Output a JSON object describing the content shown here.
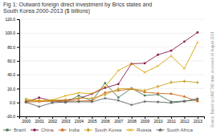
{
  "chart_data": {
    "type": "line",
    "title": "Fig 1: Outward foreign direct investment by Brics states and\nSouth Korea 2000-2013 ($ billions)",
    "x": [
      2000,
      2001,
      2002,
      2003,
      2004,
      2005,
      2006,
      2007,
      2008,
      2009,
      2010,
      2011,
      2012,
      2013
    ],
    "series": [
      {
        "name": "Brazil",
        "color": "#4a7c59",
        "marker": "square",
        "values": [
          2.3,
          2.5,
          2.5,
          0.2,
          9.8,
          2.5,
          28.0,
          7.1,
          20.5,
          10.1,
          11.5,
          1.0,
          2.0,
          3.5
        ]
      },
      {
        "name": "China",
        "color": "#8b1a4a",
        "marker": "circle",
        "values": [
          0.9,
          6.9,
          2.5,
          2.9,
          5.5,
          12.3,
          21.2,
          26.5,
          55.9,
          56.5,
          68.8,
          74.7,
          87.8,
          101.0
        ]
      },
      {
        "name": "India",
        "color": "#d2691e",
        "marker": "triangle",
        "values": [
          0.5,
          1.4,
          1.7,
          1.9,
          2.2,
          2.5,
          14.3,
          17.3,
          19.4,
          14.9,
          13.2,
          12.5,
          8.5,
          1.7
        ]
      },
      {
        "name": "South Korea",
        "color": "#c8a020",
        "marker": "diamond",
        "values": [
          4.9,
          2.4,
          3.0,
          4.0,
          5.7,
          6.0,
          11.2,
          19.6,
          20.0,
          17.2,
          23.0,
          29.0,
          30.6,
          28.8
        ]
      },
      {
        "name": "Russia",
        "color": "#daa000",
        "marker": "cross",
        "values": [
          3.2,
          2.5,
          3.5,
          9.7,
          13.8,
          12.8,
          23.1,
          45.9,
          56.0,
          43.3,
          52.6,
          67.3,
          48.8,
          86.5
        ]
      },
      {
        "name": "South Africa",
        "color": "#666666",
        "marker": "star",
        "values": [
          0.3,
          -6.0,
          -0.4,
          0.6,
          1.0,
          0.9,
          6.1,
          2.9,
          -3.5,
          1.4,
          0.8,
          -0.6,
          1.6,
          5.6
        ]
      }
    ],
    "xlim": [
      1999.5,
      2013.5
    ],
    "xticks": [
      2000,
      2001,
      2002,
      2003,
      2004,
      2005,
      2006,
      2007,
      2008,
      2009,
      2010,
      2011,
      2012,
      2013
    ],
    "ylim": [
      -20.0,
      120.0
    ],
    "yticks": [
      {
        "value": -20,
        "label": "-20.0"
      },
      {
        "value": 0,
        "label": "0.0"
      },
      {
        "value": 20,
        "label": "20.0"
      },
      {
        "value": 40,
        "label": "40.0"
      },
      {
        "value": 60,
        "label": "60.0"
      },
      {
        "value": 80,
        "label": "80.0"
      },
      {
        "value": 100,
        "label": "100.0"
      },
      {
        "value": 120,
        "label": "120.0"
      }
    ],
    "grid": true,
    "legend": "bottom",
    "annotations": [
      "Source: Based on UNCTAD data, accessed 16 August 2014"
    ]
  }
}
